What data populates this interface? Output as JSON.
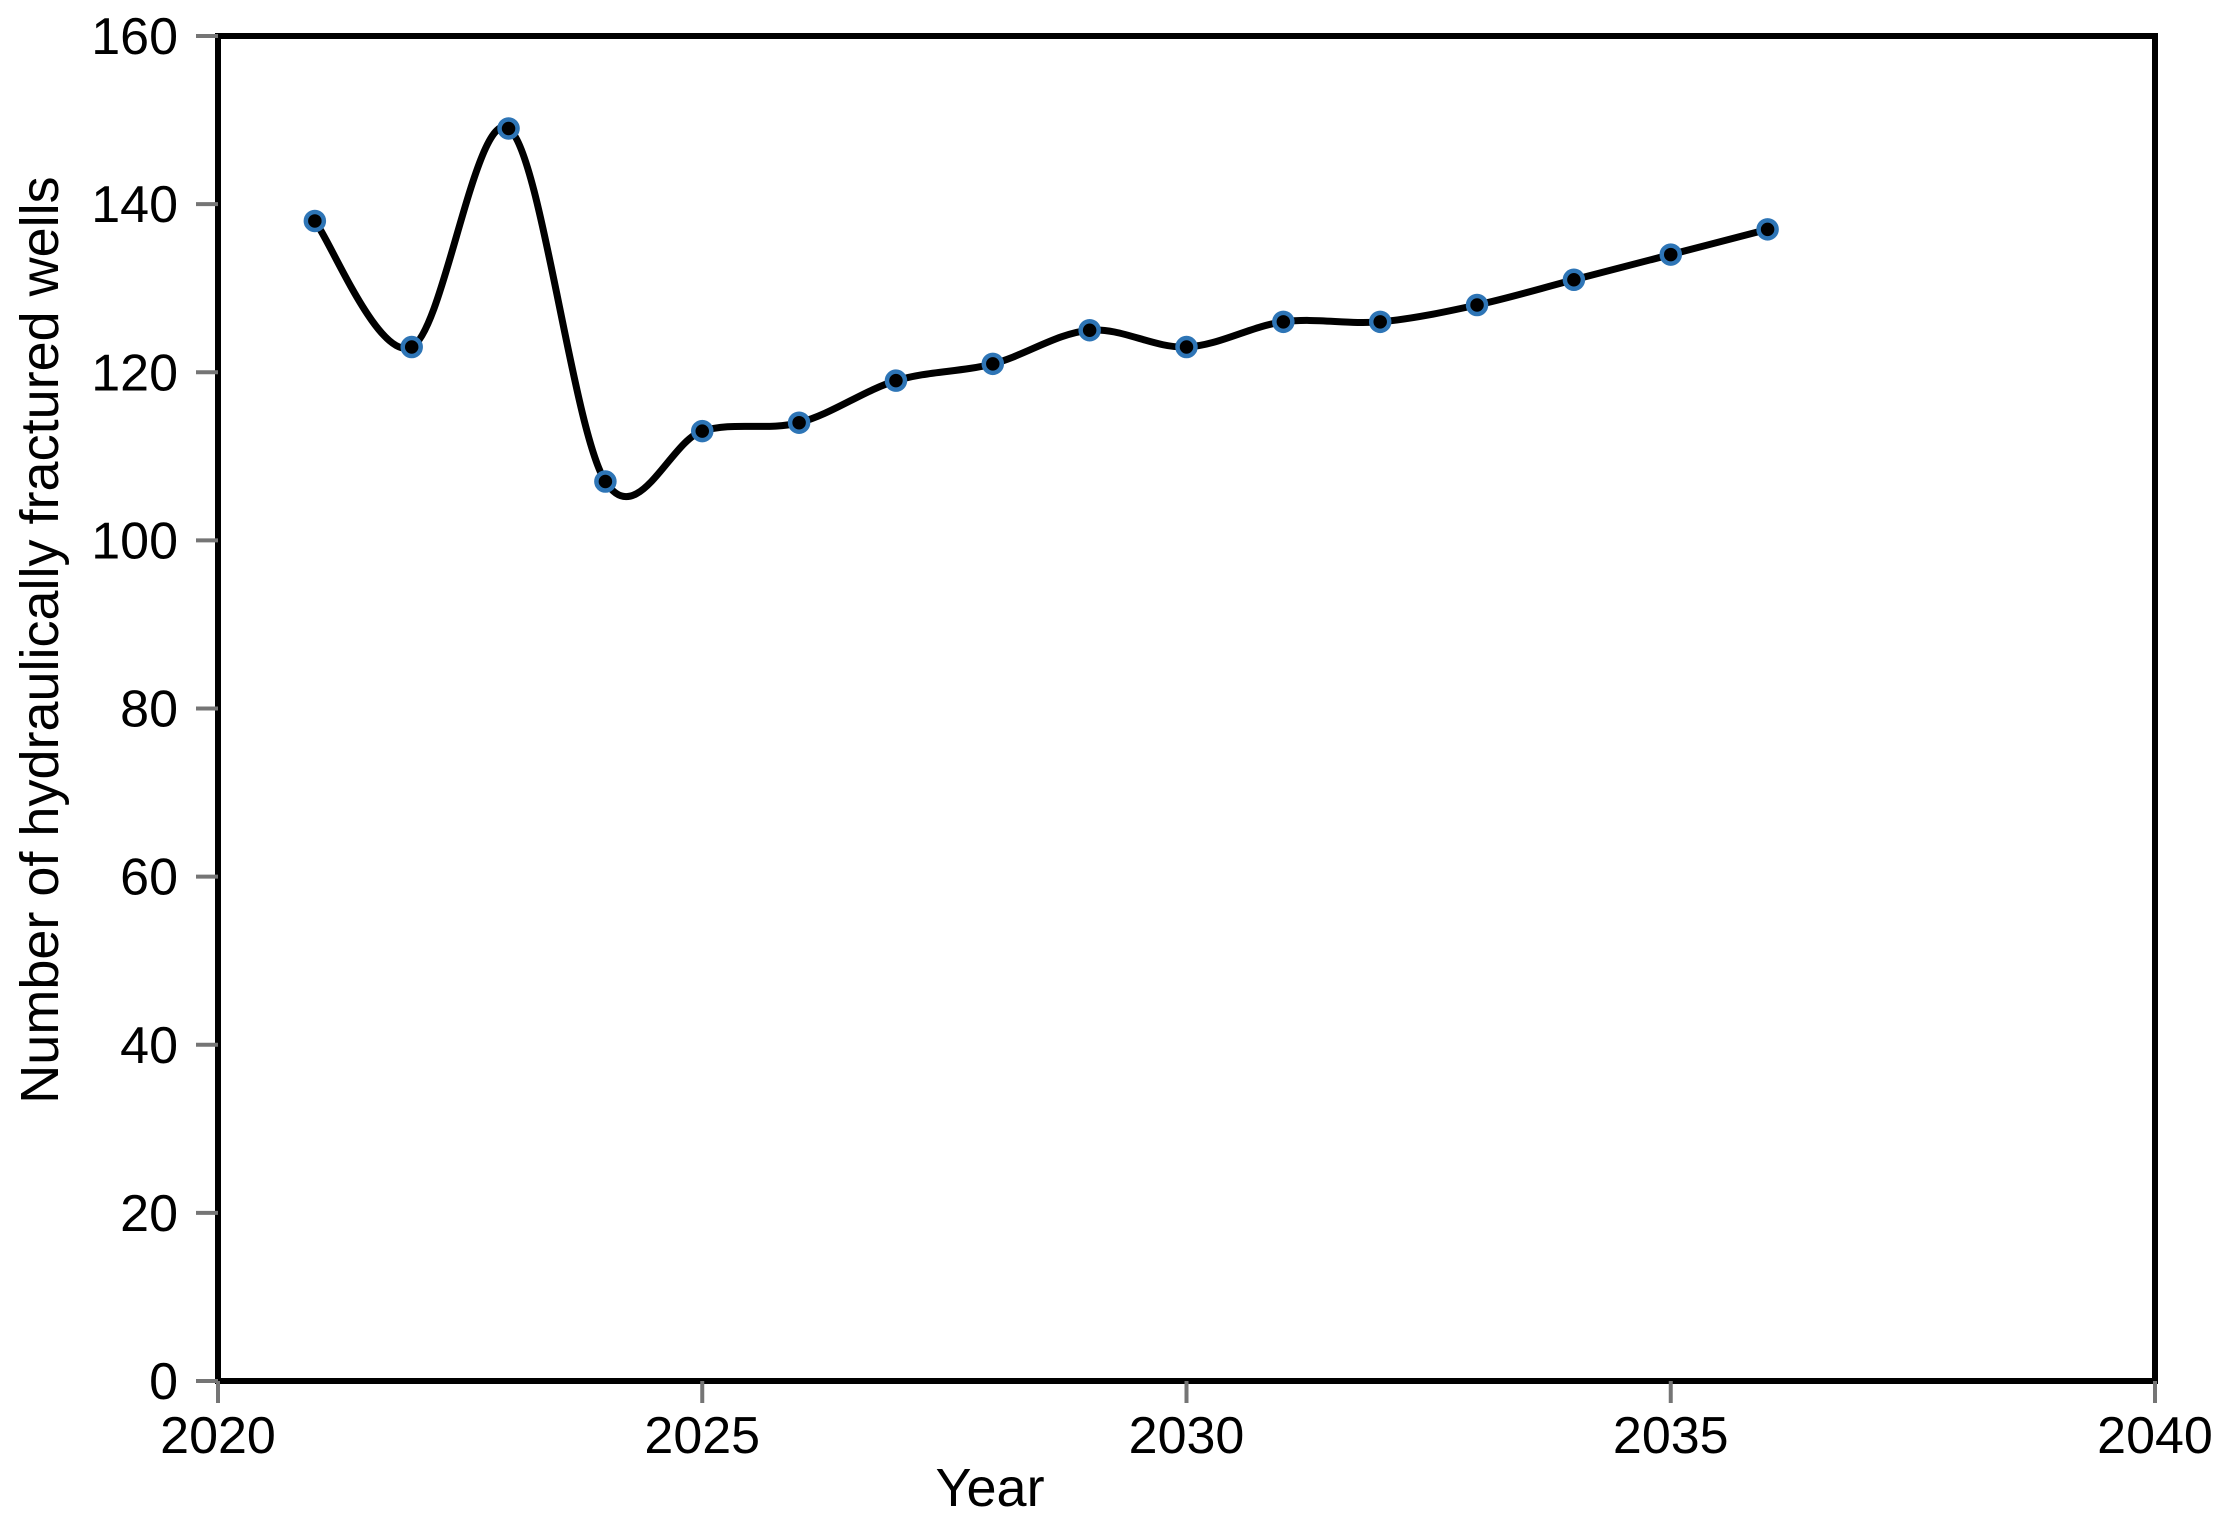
{
  "figure": {
    "background": "#ffffff",
    "frame_color": "#000000",
    "tick_color": "#757575",
    "text_color": "#000000"
  },
  "chart_data": {
    "type": "line",
    "title": "",
    "xlabel": "Year",
    "ylabel": "Number of hydraulically fractured wells",
    "x": [
      2021,
      2022,
      2023,
      2024,
      2025,
      2026,
      2027,
      2028,
      2029,
      2030,
      2031,
      2032,
      2033,
      2034,
      2035,
      2036
    ],
    "series": [
      {
        "name": "Number of hydraulically fractured wells",
        "values": [
          138,
          123,
          149,
          107,
          113,
          114,
          119,
          121,
          125,
          123,
          126,
          126,
          128,
          131,
          134,
          137
        ]
      }
    ],
    "xlim": [
      2020,
      2040
    ],
    "ylim": [
      0,
      160
    ],
    "xticks": [
      2020,
      2025,
      2030,
      2035,
      2040
    ],
    "yticks": [
      0,
      20,
      40,
      60,
      80,
      100,
      120,
      140,
      160
    ],
    "grid": false,
    "legend": false,
    "smooth": true,
    "line_color": "#000000",
    "marker_fill": "#000000",
    "marker_ring": "#2E75B6"
  }
}
